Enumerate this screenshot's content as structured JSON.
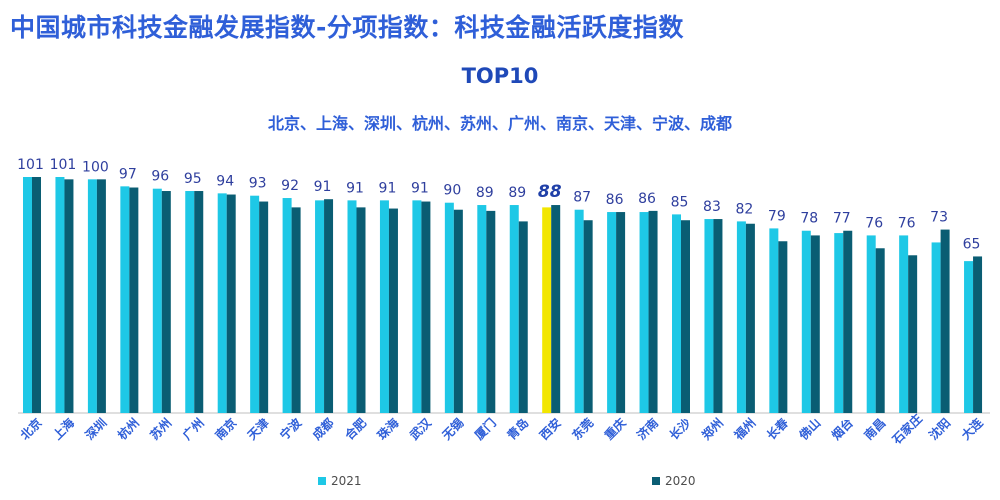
{
  "title": "中国城市科技金融发展指数-分项指数：科技金融活跃度指数",
  "subtitle": "TOP10",
  "top10_list": "北京、上海、深圳、杭州、苏州、广州、南京、天津、宁波、成都",
  "colors": {
    "series_2021": "#1ec8e6",
    "series_2020": "#0a5d73",
    "highlight": "#f2e600",
    "label": "#2f3f9e",
    "highlight_label": "#2040a8",
    "city_label": "#2f5fd8"
  },
  "chart_data": {
    "type": "bar",
    "title": "中国城市科技金融发展指数-分项指数：科技金融活跃度指数",
    "subtitle": "TOP10",
    "categories": [
      "北京",
      "上海",
      "深圳",
      "杭州",
      "苏州",
      "广州",
      "南京",
      "天津",
      "宁波",
      "成都",
      "合肥",
      "珠海",
      "武汉",
      "无锡",
      "厦门",
      "青岛",
      "西安",
      "东莞",
      "重庆",
      "济南",
      "长沙",
      "郑州",
      "福州",
      "长春",
      "佛山",
      "烟台",
      "南昌",
      "石家庄",
      "沈阳",
      "大连"
    ],
    "series": [
      {
        "name": "2021",
        "values": [
          101,
          101,
          100,
          97,
          96,
          95,
          94,
          93,
          92,
          91,
          91,
          91,
          91,
          90,
          89,
          89,
          88,
          87,
          86,
          86,
          85,
          83,
          82,
          79,
          78,
          77,
          76,
          76,
          73,
          65
        ]
      },
      {
        "name": "2020",
        "values": [
          101,
          100,
          100,
          96.5,
          95,
          95,
          93.5,
          90.5,
          88,
          91.5,
          88,
          87.5,
          90.5,
          87,
          86.5,
          82,
          89,
          82.5,
          86,
          86.5,
          82.5,
          83,
          81,
          73.5,
          76,
          78,
          70.5,
          67.5,
          78.5,
          67
        ]
      }
    ],
    "highlight_category": "西安",
    "value_labels_series": "2021",
    "ylim": [
      0,
      101
    ],
    "legend_position": "bottom",
    "grid": false,
    "xlabel": "",
    "ylabel": ""
  }
}
